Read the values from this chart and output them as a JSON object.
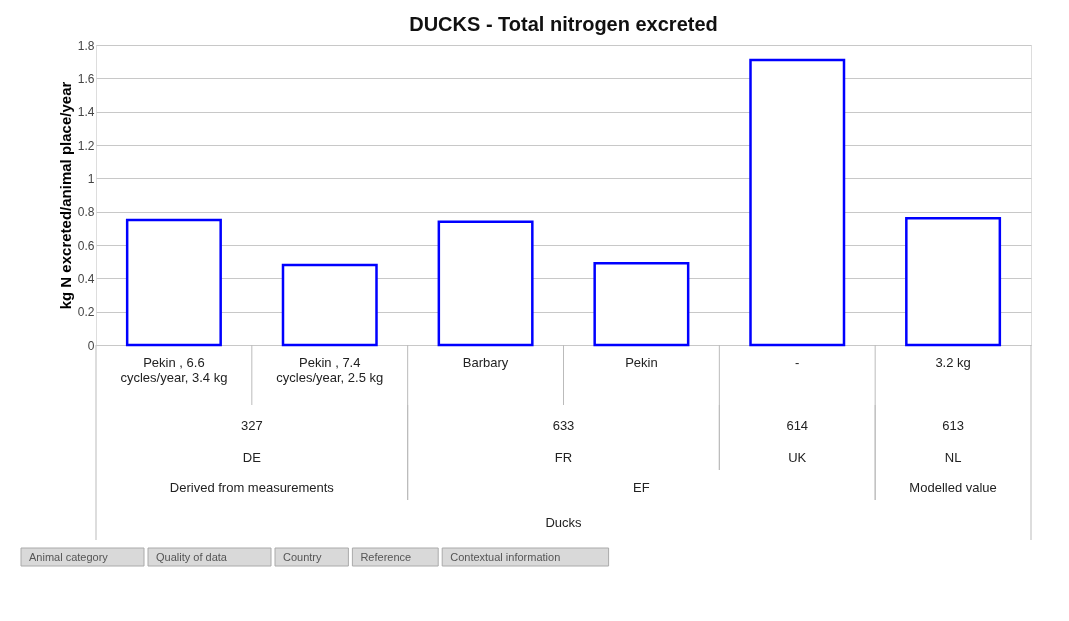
{
  "chart_data": {
    "type": "bar",
    "title": "DUCKS - Total nitrogen excreted",
    "ylabel": "kg N excreted/animal place/year",
    "categories": [
      "Pekin , 6.6 cycles/year, 3.4 kg",
      "Pekin , 7.4 cycles/year, 2.5 kg",
      "Barbary",
      "Pekin",
      "-",
      "3.2 kg"
    ],
    "values": [
      0.75,
      0.48,
      0.74,
      0.49,
      1.71,
      0.76
    ],
    "color": "#0000ff",
    "ylim": [
      0,
      1.8
    ],
    "yticks": [
      0,
      0.2,
      0.4,
      0.6,
      0.8,
      1,
      1.2,
      1.4,
      1.6,
      1.8
    ],
    "grid": "y",
    "annotations": [
      "327",
      "633",
      "614",
      "613",
      "DE",
      "FR",
      "UK",
      "NL",
      "Derived from measurements",
      "EF",
      "Modelled value",
      "Ducks",
      "Animal category",
      "Quality of data",
      "Country",
      "Reference",
      "Contextual information"
    ]
  }
}
